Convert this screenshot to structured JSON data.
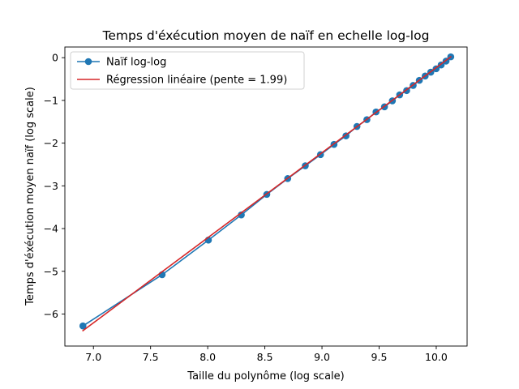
{
  "chart_data": {
    "type": "line",
    "title": "Temps d'éxécution moyen de naïf en echelle log-log",
    "xlabel": "Taille du polynôme (log scale)",
    "ylabel": "Temps d'éxécution moyen naïf (log scale)",
    "xlim": [
      6.75,
      10.27
    ],
    "ylim": [
      -6.75,
      0.25
    ],
    "xticks": [
      7.0,
      7.5,
      8.0,
      8.5,
      9.0,
      9.5,
      10.0
    ],
    "xtick_labels": [
      "7.0",
      "7.5",
      "8.0",
      "8.5",
      "9.0",
      "9.5",
      "10.0"
    ],
    "yticks": [
      0,
      -1,
      -2,
      -3,
      -4,
      -5,
      -6
    ],
    "ytick_labels": [
      "0",
      "−1",
      "−2",
      "−3",
      "−4",
      "−5",
      "−6"
    ],
    "grid": false,
    "legend_position": "upper-left",
    "series": [
      {
        "name": "Naïf log-log",
        "kind": "line-marker",
        "color": "#1f77b4",
        "x": [
          6.908,
          7.601,
          8.006,
          8.294,
          8.517,
          8.7,
          8.854,
          8.987,
          9.105,
          9.21,
          9.306,
          9.393,
          9.473,
          9.547,
          9.616,
          9.68,
          9.741,
          9.798,
          9.852,
          9.903,
          9.952,
          9.999,
          10.043,
          10.086,
          10.127
        ],
        "y": [
          -6.28,
          -5.08,
          -4.27,
          -3.68,
          -3.2,
          -2.83,
          -2.53,
          -2.27,
          -2.03,
          -1.83,
          -1.61,
          -1.45,
          -1.27,
          -1.15,
          -1.01,
          -0.87,
          -0.77,
          -0.65,
          -0.53,
          -0.43,
          -0.34,
          -0.26,
          -0.17,
          -0.08,
          0.02
        ]
      },
      {
        "name": "Régression linéaire (pente = 1.99)",
        "kind": "line",
        "color": "#d62728",
        "x": [
          6.908,
          10.127
        ],
        "y": [
          -6.39,
          0.02
        ]
      }
    ]
  }
}
